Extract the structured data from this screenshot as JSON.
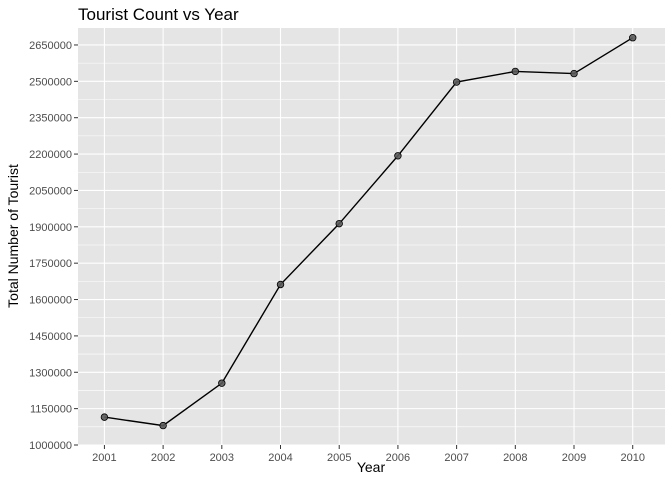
{
  "chart_data": {
    "type": "line",
    "title": "Tourist Count vs Year",
    "xlabel": "Year",
    "ylabel": "Total Number of Tourist",
    "x": [
      2001,
      2002,
      2003,
      2004,
      2005,
      2006,
      2007,
      2008,
      2009,
      2010
    ],
    "series": [
      {
        "values": [
          1115000,
          1080000,
          1255000,
          1662000,
          1913000,
          2193000,
          2497000,
          2541000,
          2532000,
          2680000
        ]
      }
    ],
    "x_ticks": [
      2001,
      2002,
      2003,
      2004,
      2005,
      2006,
      2007,
      2008,
      2009,
      2010
    ],
    "y_ticks": [
      1000000,
      1150000,
      1300000,
      1450000,
      1600000,
      1750000,
      1900000,
      2050000,
      2200000,
      2350000,
      2500000,
      2650000
    ],
    "xlim": [
      2000.55,
      2010.55
    ],
    "ylim": [
      1000000,
      2720000
    ],
    "grid": true,
    "colors": {
      "panel_background": "#e5e5e5",
      "grid": "#ffffff",
      "line": "#000000",
      "point": "#595959",
      "tick_text": "#4d4d4d"
    }
  }
}
